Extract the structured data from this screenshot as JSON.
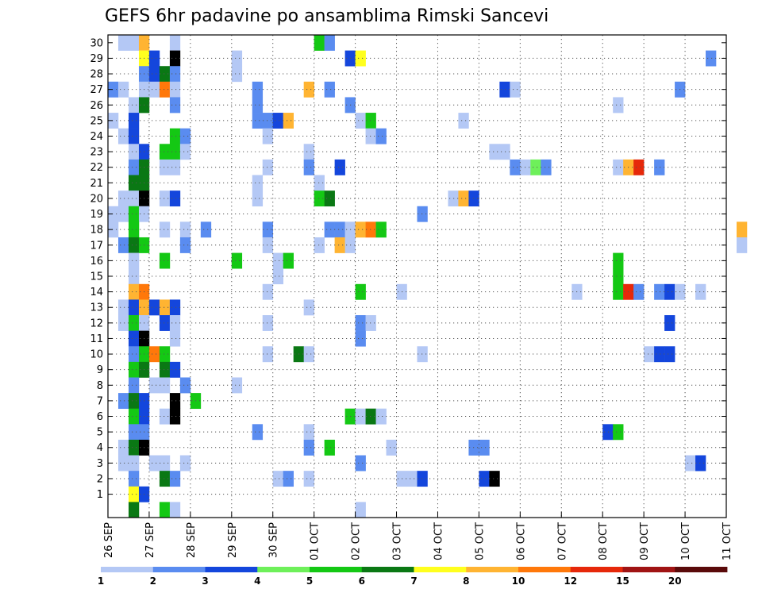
{
  "chart_data": {
    "type": "heatmap",
    "title": "GEFS 6hr padavine po ansamblima Rimski Sancevi",
    "xlabel": "",
    "ylabel": "",
    "x_tick_labels": [
      "26 SEP",
      "27 SEP",
      "28 SEP",
      "29 SEP",
      "30 SEP",
      "01 OCT",
      "02 OCT",
      "03 OCT",
      "04 OCT",
      "05 OCT",
      "06 OCT",
      "07 OCT",
      "08 OCT",
      "09 OCT",
      "10 OCT",
      "11 OCT"
    ],
    "x_range_days": [
      0,
      15
    ],
    "y_range": [
      0,
      30
    ],
    "y_ticks": [
      1,
      2,
      3,
      4,
      5,
      6,
      7,
      8,
      9,
      10,
      11,
      12,
      13,
      14,
      15,
      16,
      17,
      18,
      19,
      20,
      21,
      22,
      23,
      24,
      25,
      26,
      27,
      28,
      29,
      30
    ],
    "step_hours": 6,
    "grid": true,
    "colorbar": {
      "position": "bottom",
      "tick_labels": [
        "1",
        "2",
        "3",
        "4",
        "5",
        "6",
        "7",
        "8",
        "10",
        "12",
        "15",
        "20"
      ],
      "colors": [
        "#b4c8f5",
        "#5a8cf0",
        "#1446dc",
        "#6ef05a",
        "#14c814",
        "#0a7814",
        "#ffff1e",
        "#ffb432",
        "#ff780a",
        "#e6280a",
        "#a01414",
        "#5a0a0a"
      ]
    },
    "cells": [
      [
        1,
        30,
        1
      ],
      [
        2,
        30,
        1
      ],
      [
        3,
        30,
        8
      ],
      [
        6,
        30,
        1
      ],
      [
        20,
        30,
        5
      ],
      [
        21,
        30,
        2
      ],
      [
        3,
        29,
        7
      ],
      [
        4,
        29,
        3
      ],
      [
        6,
        29,
        14
      ],
      [
        12,
        29,
        1
      ],
      [
        23,
        29,
        3
      ],
      [
        24,
        29,
        7
      ],
      [
        58,
        29,
        2
      ],
      [
        3,
        28,
        2
      ],
      [
        4,
        28,
        3
      ],
      [
        5,
        28,
        6
      ],
      [
        6,
        28,
        2
      ],
      [
        12,
        28,
        1
      ],
      [
        0,
        27,
        2
      ],
      [
        1,
        27,
        1
      ],
      [
        3,
        27,
        1
      ],
      [
        4,
        27,
        1
      ],
      [
        5,
        27,
        9
      ],
      [
        6,
        27,
        1
      ],
      [
        14,
        27,
        2
      ],
      [
        19,
        27,
        8
      ],
      [
        21,
        27,
        2
      ],
      [
        38,
        27,
        3
      ],
      [
        39,
        27,
        1
      ],
      [
        55,
        27,
        2
      ],
      [
        2,
        26,
        1
      ],
      [
        3,
        26,
        6
      ],
      [
        6,
        26,
        2
      ],
      [
        14,
        26,
        2
      ],
      [
        23,
        26,
        2
      ],
      [
        49,
        26,
        1
      ],
      [
        0,
        25,
        1
      ],
      [
        2,
        25,
        3
      ],
      [
        14,
        25,
        2
      ],
      [
        15,
        25,
        2
      ],
      [
        16,
        25,
        3
      ],
      [
        17,
        25,
        8
      ],
      [
        24,
        25,
        1
      ],
      [
        25,
        25,
        5
      ],
      [
        34,
        25,
        1
      ],
      [
        1,
        24,
        1
      ],
      [
        2,
        24,
        3
      ],
      [
        6,
        24,
        5
      ],
      [
        7,
        24,
        2
      ],
      [
        15,
        24,
        1
      ],
      [
        25,
        24,
        1
      ],
      [
        26,
        24,
        2
      ],
      [
        2,
        23,
        1
      ],
      [
        3,
        23,
        3
      ],
      [
        5,
        23,
        5
      ],
      [
        6,
        23,
        5
      ],
      [
        7,
        23,
        1
      ],
      [
        19,
        23,
        1
      ],
      [
        37,
        23,
        1
      ],
      [
        38,
        23,
        1
      ],
      [
        2,
        22,
        2
      ],
      [
        3,
        22,
        6
      ],
      [
        5,
        22,
        1
      ],
      [
        6,
        22,
        1
      ],
      [
        15,
        22,
        1
      ],
      [
        19,
        22,
        2
      ],
      [
        22,
        22,
        3
      ],
      [
        39,
        22,
        2
      ],
      [
        40,
        22,
        1
      ],
      [
        41,
        22,
        4
      ],
      [
        42,
        22,
        2
      ],
      [
        49,
        22,
        1
      ],
      [
        50,
        22,
        8
      ],
      [
        51,
        22,
        10
      ],
      [
        53,
        22,
        2
      ],
      [
        2,
        21,
        6
      ],
      [
        3,
        21,
        6
      ],
      [
        14,
        21,
        1
      ],
      [
        20,
        21,
        1
      ],
      [
        1,
        20,
        1
      ],
      [
        2,
        20,
        1
      ],
      [
        3,
        20,
        14
      ],
      [
        5,
        20,
        1
      ],
      [
        6,
        20,
        3
      ],
      [
        14,
        20,
        1
      ],
      [
        20,
        20,
        5
      ],
      [
        21,
        20,
        6
      ],
      [
        33,
        20,
        1
      ],
      [
        34,
        20,
        8
      ],
      [
        35,
        20,
        3
      ],
      [
        0,
        19,
        1
      ],
      [
        1,
        19,
        1
      ],
      [
        2,
        19,
        5
      ],
      [
        3,
        19,
        1
      ],
      [
        30,
        19,
        2
      ],
      [
        0,
        18,
        1
      ],
      [
        2,
        18,
        5
      ],
      [
        5,
        18,
        1
      ],
      [
        7,
        18,
        1
      ],
      [
        9,
        18,
        2
      ],
      [
        15,
        18,
        2
      ],
      [
        21,
        18,
        2
      ],
      [
        22,
        18,
        2
      ],
      [
        23,
        18,
        1
      ],
      [
        24,
        18,
        8
      ],
      [
        25,
        18,
        9
      ],
      [
        26,
        18,
        5
      ],
      [
        61,
        18,
        8
      ],
      [
        1,
        17,
        2
      ],
      [
        2,
        17,
        6
      ],
      [
        3,
        17,
        5
      ],
      [
        7,
        17,
        2
      ],
      [
        15,
        17,
        1
      ],
      [
        20,
        17,
        1
      ],
      [
        22,
        17,
        8
      ],
      [
        23,
        17,
        1
      ],
      [
        61,
        17,
        1
      ],
      [
        2,
        16,
        1
      ],
      [
        5,
        16,
        5
      ],
      [
        12,
        16,
        5
      ],
      [
        16,
        16,
        1
      ],
      [
        17,
        16,
        5
      ],
      [
        49,
        16,
        5
      ],
      [
        2,
        15,
        1
      ],
      [
        16,
        15,
        1
      ],
      [
        49,
        15,
        5
      ],
      [
        2,
        14,
        8
      ],
      [
        3,
        14,
        9
      ],
      [
        15,
        14,
        1
      ],
      [
        24,
        14,
        5
      ],
      [
        28,
        14,
        1
      ],
      [
        45,
        14,
        1
      ],
      [
        49,
        14,
        5
      ],
      [
        50,
        14,
        10
      ],
      [
        51,
        14,
        2
      ],
      [
        53,
        14,
        2
      ],
      [
        54,
        14,
        3
      ],
      [
        55,
        14,
        1
      ],
      [
        57,
        14,
        1
      ],
      [
        1,
        13,
        1
      ],
      [
        2,
        13,
        3
      ],
      [
        3,
        13,
        8
      ],
      [
        4,
        13,
        3
      ],
      [
        5,
        13,
        8
      ],
      [
        6,
        13,
        3
      ],
      [
        19,
        13,
        1
      ],
      [
        1,
        12,
        1
      ],
      [
        2,
        12,
        5
      ],
      [
        3,
        12,
        1
      ],
      [
        5,
        12,
        3
      ],
      [
        6,
        12,
        1
      ],
      [
        15,
        12,
        1
      ],
      [
        24,
        12,
        2
      ],
      [
        25,
        12,
        1
      ],
      [
        54,
        12,
        3
      ],
      [
        2,
        11,
        3
      ],
      [
        3,
        11,
        14
      ],
      [
        6,
        11,
        1
      ],
      [
        24,
        11,
        2
      ],
      [
        2,
        10,
        2
      ],
      [
        3,
        10,
        5
      ],
      [
        4,
        10,
        9
      ],
      [
        5,
        10,
        5
      ],
      [
        15,
        10,
        1
      ],
      [
        18,
        10,
        6
      ],
      [
        19,
        10,
        1
      ],
      [
        30,
        10,
        1
      ],
      [
        52,
        10,
        1
      ],
      [
        53,
        10,
        3
      ],
      [
        54,
        10,
        3
      ],
      [
        2,
        9,
        5
      ],
      [
        3,
        9,
        6
      ],
      [
        5,
        9,
        6
      ],
      [
        6,
        9,
        3
      ],
      [
        2,
        8,
        2
      ],
      [
        4,
        8,
        1
      ],
      [
        5,
        8,
        1
      ],
      [
        7,
        8,
        2
      ],
      [
        12,
        8,
        1
      ],
      [
        1,
        7,
        2
      ],
      [
        2,
        7,
        6
      ],
      [
        3,
        7,
        3
      ],
      [
        6,
        7,
        15
      ],
      [
        8,
        7,
        5
      ],
      [
        2,
        6,
        5
      ],
      [
        3,
        6,
        3
      ],
      [
        5,
        6,
        1
      ],
      [
        6,
        6,
        16
      ],
      [
        23,
        6,
        5
      ],
      [
        24,
        6,
        1
      ],
      [
        25,
        6,
        6
      ],
      [
        26,
        6,
        1
      ],
      [
        2,
        5,
        2
      ],
      [
        3,
        5,
        2
      ],
      [
        14,
        5,
        2
      ],
      [
        19,
        5,
        1
      ],
      [
        48,
        5,
        3
      ],
      [
        49,
        5,
        5
      ],
      [
        1,
        4,
        1
      ],
      [
        2,
        4,
        6
      ],
      [
        3,
        4,
        14
      ],
      [
        19,
        4,
        2
      ],
      [
        21,
        4,
        5
      ],
      [
        27,
        4,
        1
      ],
      [
        35,
        4,
        2
      ],
      [
        36,
        4,
        2
      ],
      [
        1,
        3,
        1
      ],
      [
        2,
        3,
        1
      ],
      [
        4,
        3,
        1
      ],
      [
        5,
        3,
        1
      ],
      [
        7,
        3,
        1
      ],
      [
        24,
        3,
        2
      ],
      [
        56,
        3,
        1
      ],
      [
        57,
        3,
        3
      ],
      [
        2,
        2,
        2
      ],
      [
        5,
        2,
        6
      ],
      [
        6,
        2,
        2
      ],
      [
        16,
        2,
        1
      ],
      [
        17,
        2,
        2
      ],
      [
        19,
        2,
        1
      ],
      [
        28,
        2,
        1
      ],
      [
        29,
        2,
        1
      ],
      [
        30,
        2,
        3
      ],
      [
        36,
        2,
        3
      ],
      [
        37,
        2,
        15
      ],
      [
        2,
        1,
        7
      ],
      [
        3,
        1,
        3
      ],
      [
        2,
        0,
        6
      ],
      [
        5,
        0,
        5
      ],
      [
        6,
        0,
        1
      ],
      [
        24,
        0,
        1
      ]
    ]
  }
}
